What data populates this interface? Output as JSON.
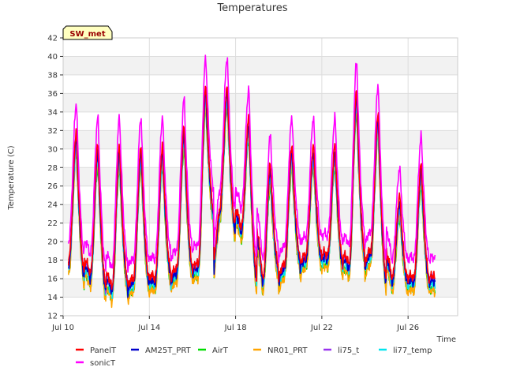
{
  "chart_data": {
    "type": "line",
    "title": "Temperatures",
    "xlabel": "Time",
    "ylabel": "Temperature (C)",
    "station_badge": "SW_met",
    "ylim": [
      12,
      42
    ],
    "yticks": [
      12,
      14,
      16,
      18,
      20,
      22,
      24,
      26,
      28,
      30,
      32,
      34,
      36,
      38,
      40,
      42
    ],
    "xlim": [
      10.0,
      28.3
    ],
    "xticks": [
      {
        "label": "Jul 10",
        "day": 10
      },
      {
        "label": "Jul 14",
        "day": 14
      },
      {
        "label": "Jul 18",
        "day": 18
      },
      {
        "label": "Jul 22",
        "day": 22
      },
      {
        "label": "Jul 26",
        "day": 26
      }
    ],
    "grid": true,
    "legend_placement": "bottom",
    "series_start_day": 10.25,
    "series_end_day": 27.25,
    "daily_max_panel": [
      32,
      30.5,
      30.5,
      30.5,
      30.5,
      32.5,
      37,
      37,
      33.5,
      28.5,
      30.5,
      30.5,
      30.5,
      36.5,
      34,
      25,
      28.5,
      30.5
    ],
    "daily_min_panel": [
      17.5,
      16,
      14.5,
      15.5,
      15.5,
      16.5,
      17,
      23,
      21,
      15.5,
      17,
      18,
      18,
      17,
      18.5,
      15.5,
      15.5,
      15.5
    ],
    "series": [
      {
        "name": "PanelT",
        "color": "#ff0000",
        "max_offset": 0,
        "min_offset": 0.5
      },
      {
        "name": "sonicT",
        "color": "#ff00ff",
        "max_offset": 3,
        "min_offset": 2.5
      },
      {
        "name": "AM25T_PRT",
        "color": "#0000cc",
        "max_offset": -0.7,
        "min_offset": 0
      },
      {
        "name": "AirT",
        "color": "#00dd00",
        "max_offset": -2.5,
        "min_offset": -0.8
      },
      {
        "name": "NR01_PRT",
        "color": "#ffa500",
        "max_offset": -2,
        "min_offset": -1
      },
      {
        "name": "li75_t",
        "color": "#9933ee",
        "max_offset": -1,
        "min_offset": 0.3
      },
      {
        "name": "li77_temp",
        "color": "#00e5ee",
        "max_offset": -1.5,
        "min_offset": -0.3
      }
    ]
  }
}
